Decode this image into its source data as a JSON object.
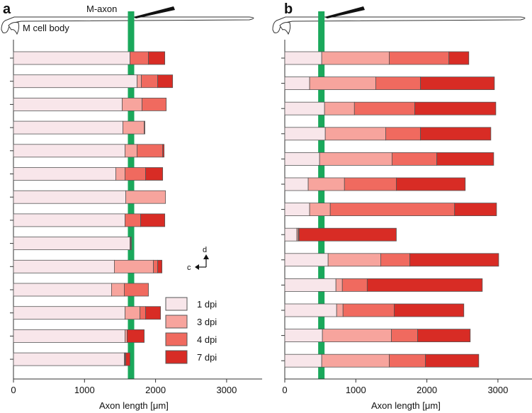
{
  "chart_data": [
    {
      "panel_label": "a",
      "type": "bar",
      "stacked": true,
      "orientation": "horizontal",
      "annotation_axon": "M-axon",
      "annotation_body": "M cell body",
      "reference_line_x": 1650,
      "xlabel": "Axon length [μm]",
      "xlim": [
        0,
        3500
      ],
      "xticks": [
        0,
        1000,
        2000,
        3000
      ],
      "xtick_labels": [
        "0",
        "1000",
        "2000",
        "3000"
      ],
      "series_names": [
        "1 dpi",
        "3 dpi",
        "4 dpi",
        "7 dpi"
      ],
      "rows": [
        [
          1640,
          1640,
          1900,
          2130
        ],
        [
          1740,
          1800,
          2030,
          2240
        ],
        [
          1530,
          1810,
          2150,
          2150
        ],
        [
          1540,
          1840,
          1850,
          1850
        ],
        [
          1570,
          1740,
          2100,
          2120
        ],
        [
          1440,
          1570,
          1860,
          2100
        ],
        [
          1580,
          2140,
          2140,
          2140
        ],
        [
          1570,
          1570,
          1790,
          2130
        ],
        [
          1640,
          1650,
          1660,
          1660
        ],
        [
          1420,
          1970,
          2030,
          2090
        ],
        [
          1380,
          1560,
          1900,
          1900
        ],
        [
          1570,
          1780,
          1860,
          2070
        ],
        [
          1570,
          1600,
          1600,
          1840
        ],
        [
          1560,
          1570,
          1580,
          1640
        ]
      ]
    },
    {
      "panel_label": "b",
      "type": "bar",
      "stacked": true,
      "orientation": "horizontal",
      "reference_line_x": 510,
      "xlabel": "Axon length [μm]",
      "xlim": [
        0,
        3500
      ],
      "xticks": [
        0,
        1000,
        2000,
        3000
      ],
      "xtick_labels": [
        "0",
        "1000",
        "2000",
        "3000"
      ],
      "series_names": [
        "1 dpi",
        "3 dpi",
        "4 dpi",
        "7 dpi"
      ],
      "rows": [
        [
          520,
          1470,
          2310,
          2590
        ],
        [
          350,
          1280,
          1910,
          2950
        ],
        [
          560,
          980,
          1830,
          2970
        ],
        [
          570,
          1420,
          1910,
          2900
        ],
        [
          490,
          1510,
          2140,
          2940
        ],
        [
          330,
          840,
          1570,
          2540
        ],
        [
          350,
          640,
          2390,
          2980
        ],
        [
          170,
          190,
          200,
          1570
        ],
        [
          610,
          1350,
          1760,
          3010
        ],
        [
          720,
          810,
          1160,
          2780
        ],
        [
          730,
          820,
          1540,
          2520
        ],
        [
          530,
          1500,
          1870,
          2610
        ],
        [
          520,
          1470,
          1980,
          2730
        ]
      ]
    }
  ],
  "legend": {
    "items": [
      {
        "label": "1 dpi",
        "color": "#f8e6ea"
      },
      {
        "label": "3 dpi",
        "color": "#f7a49d"
      },
      {
        "label": "4 dpi",
        "color": "#f06a5f"
      },
      {
        "label": "7 dpi",
        "color": "#d82c25"
      }
    ]
  },
  "orientation_arrows": {
    "up": "d",
    "left": "c"
  },
  "colors": {
    "reference_line": "#1aa85b",
    "bar_outline": "#555555",
    "axis": "#333333"
  }
}
